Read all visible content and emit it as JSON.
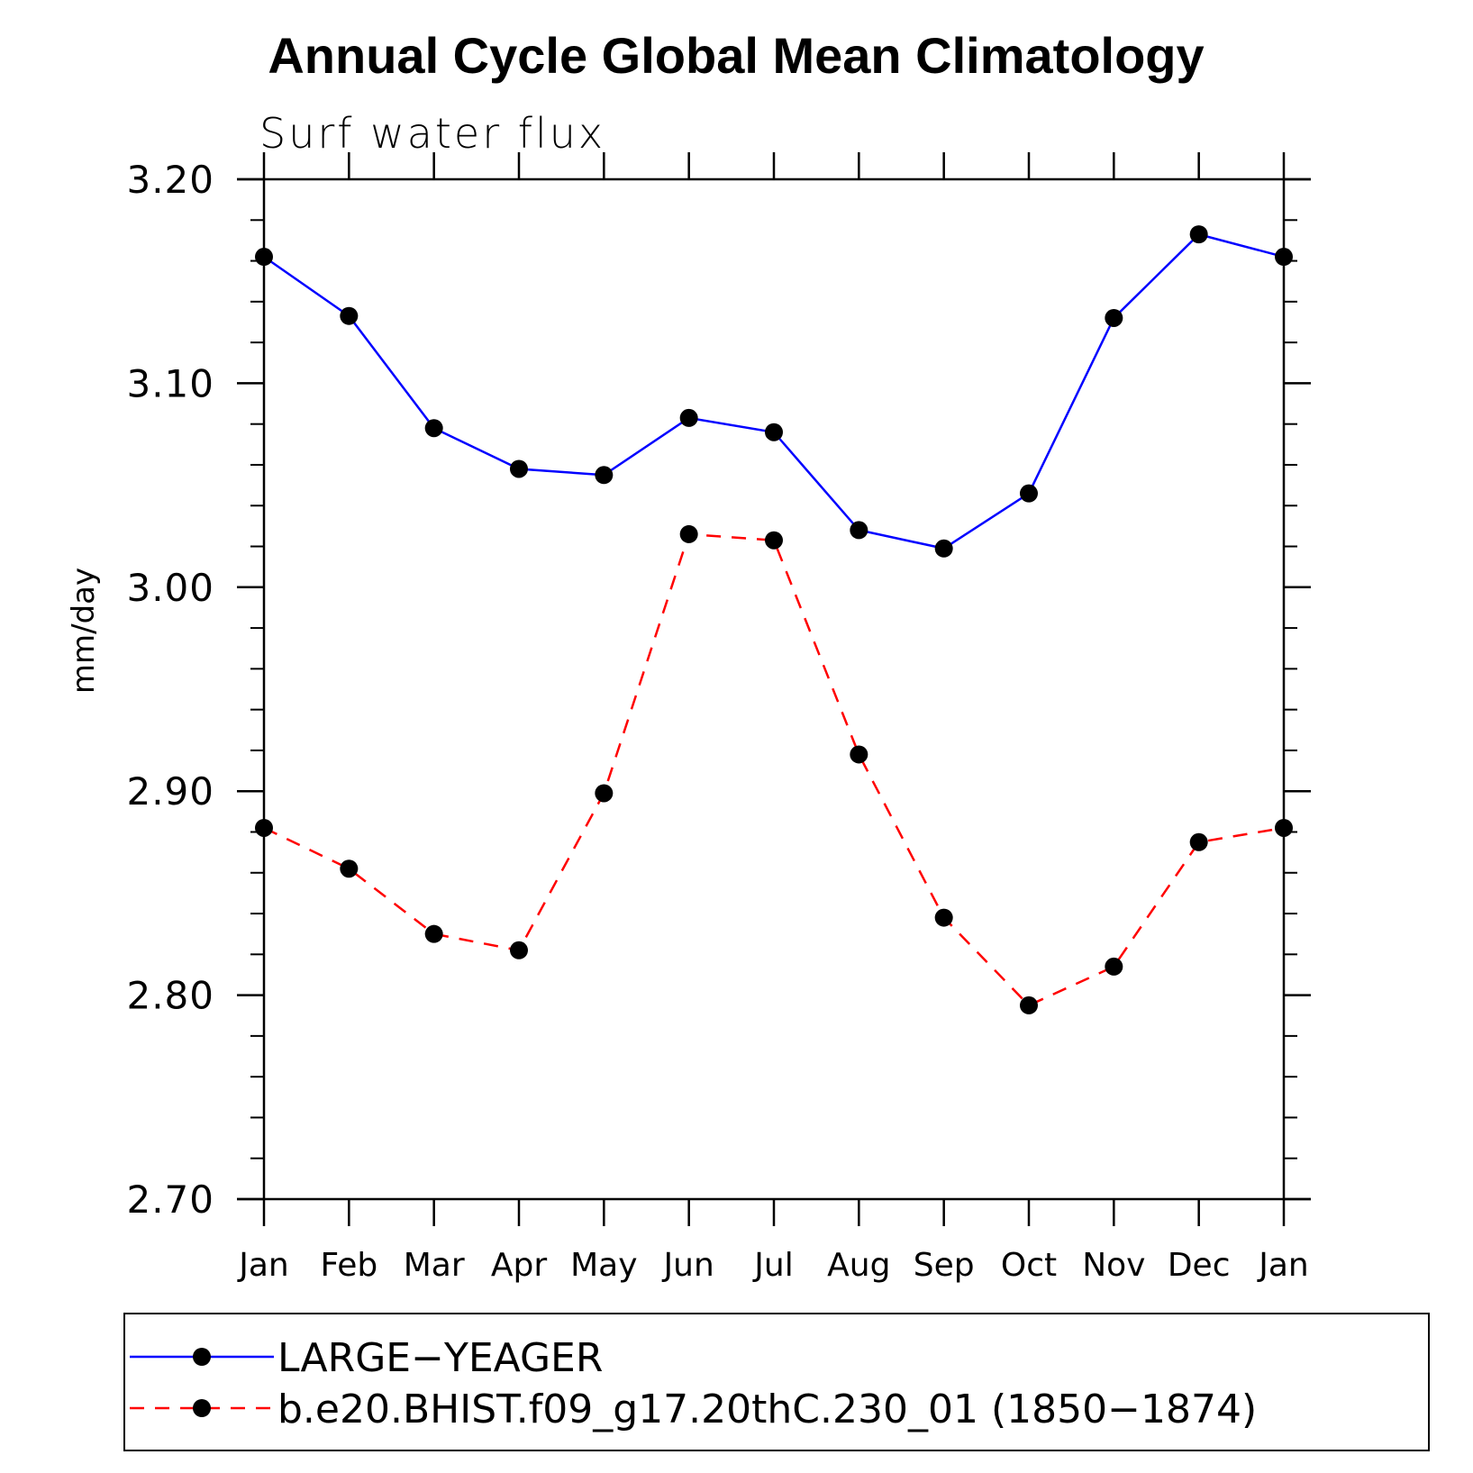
{
  "chart_data": {
    "type": "line",
    "title": "Annual Cycle Global Mean Climatology",
    "subtitle": "Surf water flux",
    "ylabel": "mm/day",
    "xlabel": "",
    "categories": [
      "Jan",
      "Feb",
      "Mar",
      "Apr",
      "May",
      "Jun",
      "Jul",
      "Aug",
      "Sep",
      "Oct",
      "Nov",
      "Dec",
      "Jan"
    ],
    "ylim": [
      2.7,
      3.2
    ],
    "yticks": [
      "3.20",
      "3.10",
      "3.00",
      "2.90",
      "2.80",
      "2.70"
    ],
    "grid": false,
    "legend_position": "bottom",
    "series": [
      {
        "name": "LARGE−YEAGER",
        "color": "#0000ff",
        "dash": "solid",
        "marker": "circle",
        "values": [
          3.162,
          3.133,
          3.078,
          3.058,
          3.055,
          3.083,
          3.076,
          3.028,
          3.019,
          3.046,
          3.132,
          3.173,
          3.162
        ]
      },
      {
        "name": "b.e20.BHIST.f09_g17.20thC.230_01 (1850−1874)",
        "color": "#ff0000",
        "dash": "dashed",
        "marker": "circle",
        "values": [
          2.882,
          2.862,
          2.83,
          2.822,
          2.899,
          3.026,
          3.023,
          2.918,
          2.838,
          2.795,
          2.814,
          2.875,
          2.882
        ]
      }
    ]
  }
}
